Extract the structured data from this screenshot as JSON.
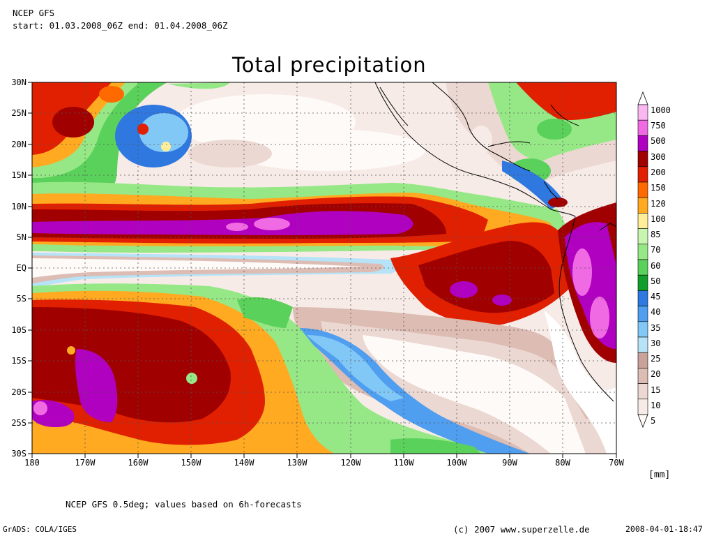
{
  "header": {
    "model": "NCEP GFS",
    "period": "start: 01.03.2008_06Z end: 01.04.2008_06Z",
    "title": "Total precipitation"
  },
  "map": {
    "lon_labels": [
      "180",
      "170W",
      "160W",
      "150W",
      "140W",
      "130W",
      "120W",
      "110W",
      "100W",
      "90W",
      "80W",
      "70W"
    ],
    "lat_labels": [
      "30N",
      "25N",
      "20N",
      "15N",
      "10N",
      "5N",
      "EQ",
      "5S",
      "10S",
      "15S",
      "20S",
      "25S",
      "30S"
    ],
    "lon_range": [
      -180,
      -70
    ],
    "lat_range": [
      -30,
      30
    ]
  },
  "colorbar": {
    "unit": "[mm]",
    "levels": [
      "1000",
      "750",
      "500",
      "300",
      "200",
      "150",
      "120",
      "100",
      "85",
      "70",
      "60",
      "50",
      "45",
      "40",
      "35",
      "30",
      "25",
      "20",
      "15",
      "10",
      "5"
    ],
    "colors": [
      "#ffffff",
      "#f9b8f0",
      "#f06be3",
      "#b000c0",
      "#a00000",
      "#e02000",
      "#ff6a00",
      "#ffaa20",
      "#ffee99",
      "#c8f5b0",
      "#96e886",
      "#5ad15a",
      "#119e2a",
      "#2f78e0",
      "#4f9ef0",
      "#82c8f7",
      "#b6e3f7",
      "#c9a29a",
      "#dcbcb3",
      "#ecd8d2",
      "#f7ebe7",
      "#fefaf8"
    ]
  },
  "footer": {
    "note": "NCEP GFS 0.5deg; values based on 6h-forecasts",
    "software": "GrADS: COLA/IGES",
    "copyright": "(c) 2007 www.superzelle.de",
    "timestamp": "2008-04-01-18:47"
  }
}
